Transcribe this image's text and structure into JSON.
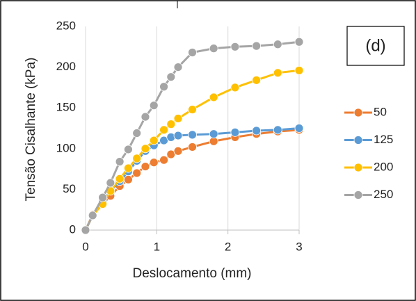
{
  "chart_data": {
    "type": "line",
    "xlabel": "Deslocamento (mm)",
    "ylabel": "Tensão Cisalhante (kPa)",
    "annotation": "(d)",
    "x": [
      0,
      0.1,
      0.24,
      0.35,
      0.48,
      0.6,
      0.72,
      0.84,
      0.96,
      1.1,
      1.2,
      1.3,
      1.5,
      1.8,
      2.1,
      2.4,
      2.7,
      3.0
    ],
    "series": [
      {
        "name": "50",
        "color": "#ed7d31",
        "values": [
          0,
          19,
          32,
          42,
          54,
          62,
          70,
          78,
          83,
          86,
          93,
          97,
          102,
          109,
          114,
          118,
          121,
          123
        ]
      },
      {
        "name": "125",
        "color": "#5b9bd5",
        "values": [
          0,
          18,
          35,
          48,
          60,
          72,
          85,
          97,
          104,
          110,
          114,
          116,
          117,
          118,
          120,
          122,
          123,
          125
        ]
      },
      {
        "name": "200",
        "color": "#ffc000",
        "values": [
          0,
          18,
          32,
          48,
          63,
          76,
          88,
          100,
          110,
          123,
          130,
          137,
          148,
          163,
          175,
          184,
          193,
          196
        ]
      },
      {
        "name": "250",
        "color": "#a5a5a5",
        "values": [
          0,
          18,
          40,
          58,
          84,
          99,
          119,
          139,
          153,
          176,
          188,
          200,
          218,
          223,
          225,
          226,
          228,
          231
        ]
      }
    ],
    "xlim": [
      0,
      3
    ],
    "xticks": [
      0,
      1,
      2,
      3
    ],
    "ylim": [
      0,
      250
    ],
    "yticks": [
      0,
      50,
      100,
      150,
      200,
      250
    ],
    "grid": "x",
    "legend": "right"
  }
}
